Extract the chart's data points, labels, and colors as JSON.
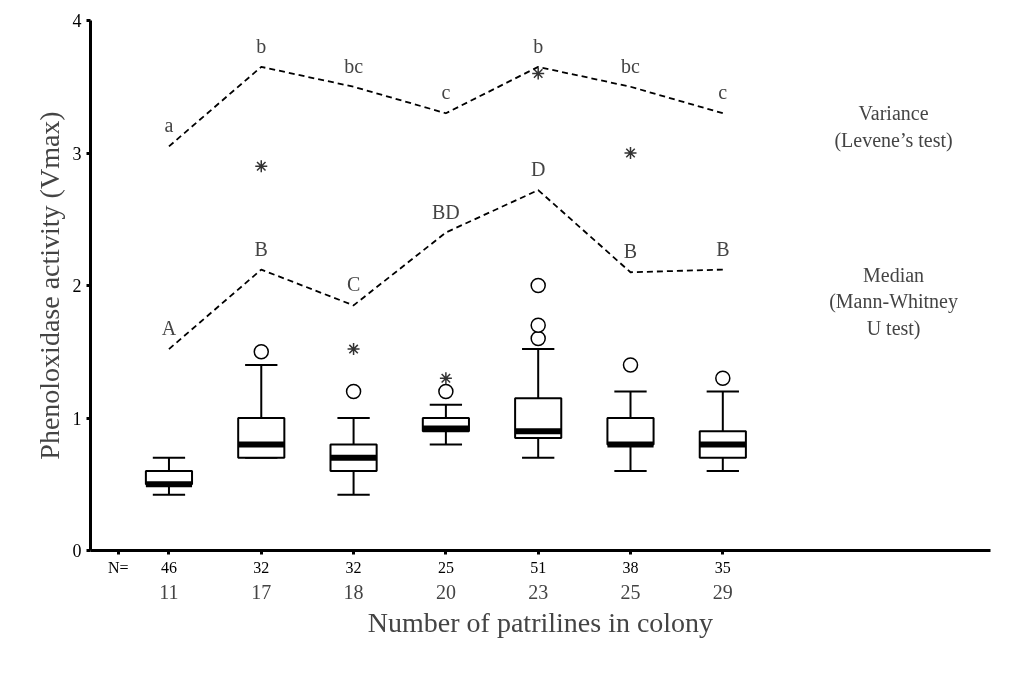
{
  "chart_data": {
    "type": "box",
    "xlabel": "Number of patrilines in colony",
    "ylabel": "Phenoloxidase activity (Vmax)",
    "categories": [
      "11",
      "17",
      "18",
      "20",
      "23",
      "25",
      "29"
    ],
    "ylim": [
      0,
      4
    ],
    "yticks": [
      0,
      1,
      2,
      3,
      4
    ],
    "grid": false,
    "boxes": [
      {
        "low": 0.42,
        "q1": 0.5,
        "median": 0.5,
        "q3": 0.6,
        "high": 0.7
      },
      {
        "low": 0.7,
        "q1": 0.7,
        "median": 0.8,
        "q3": 1.0,
        "high": 1.4,
        "outliers": [
          1.5
        ]
      },
      {
        "low": 0.42,
        "q1": 0.6,
        "median": 0.7,
        "q3": 0.8,
        "high": 1.0,
        "outliers": [
          1.2
        ]
      },
      {
        "low": 0.8,
        "q1": 0.9,
        "median": 0.92,
        "q3": 1.0,
        "high": 1.1,
        "outliers": [
          1.2
        ]
      },
      {
        "low": 0.7,
        "q1": 0.85,
        "median": 0.9,
        "q3": 1.15,
        "high": 1.52,
        "outliers": [
          1.6,
          1.7,
          2.0
        ]
      },
      {
        "low": 0.6,
        "q1": 0.8,
        "median": 0.8,
        "q3": 1.0,
        "high": 1.2,
        "outliers": [
          1.4
        ]
      },
      {
        "low": 0.6,
        "q1": 0.7,
        "median": 0.8,
        "q3": 0.9,
        "high": 1.2,
        "outliers": [
          1.3
        ]
      }
    ],
    "series": [
      {
        "type": "scatter",
        "marker": "cross",
        "color": "#333333",
        "x": [
          "17",
          "18",
          "20",
          "23",
          "25"
        ],
        "values": [
          2.9,
          1.52,
          1.3,
          3.6,
          3.0
        ]
      },
      {
        "type": "line",
        "line_style": "dashed",
        "marker": "none",
        "color": "#000000",
        "values": [
          3.05,
          3.65,
          3.5,
          3.3,
          3.65,
          3.5,
          3.3
        ],
        "value_labels": [
          "a",
          "b",
          "bc",
          "c",
          "b",
          "bc",
          "c"
        ]
      },
      {
        "type": "line",
        "line_style": "dashed",
        "marker": "none",
        "color": "#000000",
        "values": [
          1.52,
          2.12,
          1.85,
          2.4,
          2.72,
          2.1,
          2.12
        ],
        "value_labels": [
          "A",
          "B",
          "C",
          "BD",
          "D",
          "B",
          "B"
        ]
      }
    ],
    "annotations": [
      "N=",
      "46",
      "32",
      "32",
      "25",
      "51",
      "38",
      "35",
      "Variance\n(Levene’s test)",
      "Median\n(Mann-Whitney\nU test)"
    ]
  }
}
